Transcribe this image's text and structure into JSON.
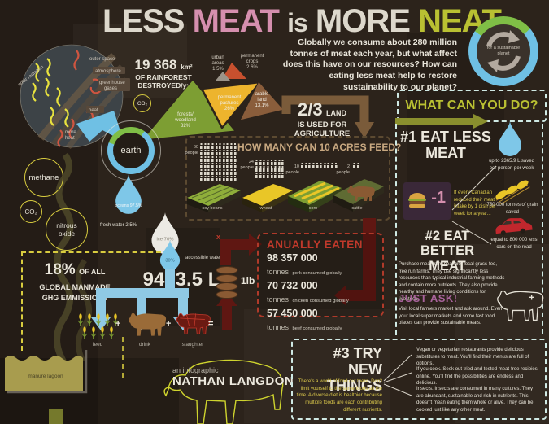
{
  "header": {
    "title_parts": [
      {
        "text": "LESS",
        "color": "#ddd8cc"
      },
      {
        "text": "MEAT",
        "color": "#d58fae"
      },
      {
        "text": "is",
        "color": "#ddd8cc"
      },
      {
        "text": "MORE",
        "color": "#ddd8cc"
      },
      {
        "text": "NEAT",
        "color": "#b9c032"
      }
    ],
    "intro": "Globally we consume about 280 million tonnes of meat each year, but what affect does this have on our resources? How can eating less meat help to restore sustainability to our planet?"
  },
  "badge": {
    "label": "for a sustainable planet"
  },
  "atmosphere_diagram": {
    "outer_space": "outer space",
    "atmosphere": "atmosphere",
    "greenhouse_gases": "greenhouse gases",
    "solar_radiation": "solar radiation",
    "heat": "heat",
    "more_heat": "more heat"
  },
  "rainforest": {
    "value": "19 368",
    "unit": "km²",
    "line2": "OF RAINFOREST",
    "line3": "DESTROYED/yr"
  },
  "co2_bubble": "CO₂",
  "earth_label": "earth",
  "gas_bubbles": {
    "methane": "methane",
    "co2": "CO₂",
    "nitrous_l1": "nitrous",
    "nitrous_l2": "oxide"
  },
  "land_use": {
    "segments": [
      {
        "l1": "forests/",
        "l2": "woodland",
        "pct": "32%"
      },
      {
        "l1": "permanent",
        "l2": "pastures",
        "pct": "26%"
      },
      {
        "l1": "arable",
        "l2": "land",
        "pct": "13.1%"
      },
      {
        "l1": "permanent",
        "l2": "crops",
        "pct": "2.6%"
      },
      {
        "l1": "urban",
        "l2": "areas",
        "pct": "1.5%"
      }
    ]
  },
  "agriculture_callout": {
    "fraction": "2/3",
    "word": "LAND",
    "line2": "IS USED FOR",
    "line3": "AGRICULTURE"
  },
  "acres_chart": {
    "title": "HOW MANY CAN 10 ACRES FEED?",
    "groups": [
      {
        "count": 60,
        "per_row": 10,
        "count_num": "60",
        "count_word": "people",
        "crop": "soy beans"
      },
      {
        "count": 24,
        "per_row": 8,
        "count_num": "24",
        "count_word": "people",
        "crop": "wheat"
      },
      {
        "count": 10,
        "per_row": 10,
        "count_num": "10",
        "count_word": "people",
        "crop": "corn"
      },
      {
        "count": 2,
        "per_row": 2,
        "count_num": "2",
        "count_word": "people",
        "crop": "cattle"
      }
    ]
  },
  "water": {
    "oceans": "oceans 97.5%",
    "fresh": "fresh water 2.5%",
    "ice": "ice 70%",
    "accessible_pct": "30%",
    "accessible_label": "accessible water",
    "volume": "9463.5 L"
  },
  "ghg": {
    "big": "18%",
    "of_all": "OF ALL",
    "line2": "GLOBAL MANMADE",
    "line3": "GHG EMMISSIONS"
  },
  "lagoon_label": "manure lagoon",
  "cycle": {
    "feed": "feed",
    "drink": "drink",
    "slaughter": "slaughter",
    "plus1": "+",
    "plus2": "+",
    "equals": "=",
    "pound": "1lb",
    "x": "x"
  },
  "annually_eaten": {
    "title": "ANUALLY EATEN",
    "rows": [
      {
        "value": "98 357 000",
        "unit": "tonnes",
        "desc": "pork consumed globally"
      },
      {
        "value": "70 732 000",
        "unit": "tonnes",
        "desc": "chicken consumed globally"
      },
      {
        "value": "57 450 000",
        "unit": "tonnes",
        "desc": "beef consumed globally"
      }
    ]
  },
  "sidebar": {
    "title": "WHAT CAN YOU DO?",
    "tip1": {
      "h1": "#1 EAT LESS",
      "h2": "MEAT",
      "minus": "-1",
      "body": "If every Canadian reduced their meat intake by 1 dish per week for a year...",
      "stats": [
        "up to 2365.9 L saved per person per week",
        "750 000 tonnes of grain saved",
        "equal to 800 000 less cars on the road"
      ]
    },
    "tip2": {
      "h1": "#2 EAT BETTER",
      "h2": "MEAT",
      "body": "Purchase meat from healthier local grass-fed, free run farms. They use significantly less resources than typical industrial farming methods and contain more nutrients. They also provide healthy and humane living conditions for livestock.",
      "ask_heading": "JUST ASK!",
      "ask_body": "Visit local farmers market and ask around. Even your local super markets and some fast food places can provide sustainable meats.",
      "plus": "+"
    },
    "tip3": {
      "h1": "#3 TRY NEW",
      "h2": "THINGS",
      "intro": "There's a world of food out there. Don't limit yourself to the same foods all the time. A diverse diet is healthier because multiple foods are each contributing different nutrients.",
      "points": [
        "Vegan or vegetarian restaurants provide delicious substitutes to meat. You'll find their menus are full of options.",
        "If you cook. Seek out tried and tested meat-free recipies online. You'll find the possibilities are endless and delicious.",
        "Insects. Insects are consumed in many cultures. They are abundant, sustainable and rich in nutrients. This doesn't mean eating them whole or alive. They can be cooked just like any other meat."
      ]
    }
  },
  "credit": {
    "pre": "an infographic",
    "name": "NATHAN LANGDON"
  },
  "colors": {
    "background": "#2c231b",
    "accent_green": "#b9c032",
    "accent_pink": "#d58fae",
    "accent_red": "#c0392b",
    "water_blue": "#7ec7e8",
    "wheat_yellow": "#e9c627",
    "olive": "#8a8f2e",
    "purple": "#a8639b",
    "brown_arrow": "#7a5b3a",
    "maroon": "#5f1712"
  }
}
